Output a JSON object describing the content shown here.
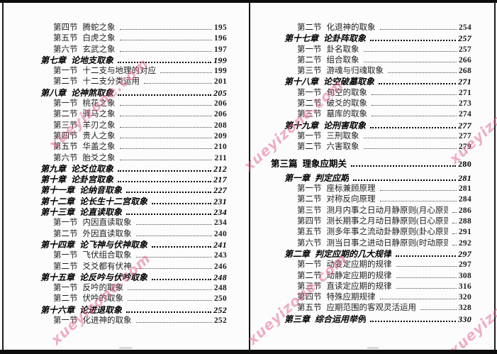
{
  "watermark": {
    "text": "xueyizone.com",
    "color": "#e4608f"
  },
  "pages": {
    "left": {
      "rows": [
        {
          "level": "jie",
          "label": "第四节",
          "title": "腾蛇之象",
          "page": "195"
        },
        {
          "level": "jie",
          "label": "第五节",
          "title": "白虎之象",
          "page": "196"
        },
        {
          "level": "jie",
          "label": "第六节",
          "title": "玄武之象",
          "page": "197"
        },
        {
          "level": "zhang",
          "label": "第七章",
          "title": "论地支取象",
          "page": "199"
        },
        {
          "level": "jie",
          "label": "第一节",
          "title": "十二支与地理的对应",
          "page": "199"
        },
        {
          "level": "jie",
          "label": "第二节",
          "title": "十二支分类运用",
          "page": "201"
        },
        {
          "level": "zhang",
          "label": "第八章",
          "title": "论神煞取象",
          "page": "205"
        },
        {
          "level": "jie",
          "label": "第一节",
          "title": "桃花之象",
          "page": "206"
        },
        {
          "level": "jie",
          "label": "第二节",
          "title": "驿马之象",
          "page": "206"
        },
        {
          "level": "jie",
          "label": "第三节",
          "title": "羊刃之象",
          "page": "208"
        },
        {
          "level": "jie",
          "label": "第四节",
          "title": "贵人之象",
          "page": "209"
        },
        {
          "level": "jie",
          "label": "第五节",
          "title": "华盖之象",
          "page": "210"
        },
        {
          "level": "jie",
          "label": "第六节",
          "title": "胎爻之象",
          "page": "211"
        },
        {
          "level": "zhang",
          "label": "第九章",
          "title": "论爻位取象",
          "page": "212"
        },
        {
          "level": "zhang",
          "label": "第十章",
          "title": "论卦宫取象",
          "page": "217"
        },
        {
          "level": "zhang",
          "label": "第十一章",
          "title": "论纳音取象",
          "page": "227"
        },
        {
          "level": "zhang",
          "label": "第十二章",
          "title": "论长生十二宫取象",
          "page": "231"
        },
        {
          "level": "zhang",
          "label": "第十三章",
          "title": "论直读取象",
          "page": "234"
        },
        {
          "level": "jie",
          "label": "第一节",
          "title": "内因直读取象",
          "page": "234"
        },
        {
          "level": "jie",
          "label": "第二节",
          "title": "外因直读取象",
          "page": "240"
        },
        {
          "level": "zhang",
          "label": "第十四章",
          "title": "论飞神与伏神取象",
          "page": "241"
        },
        {
          "level": "jie",
          "label": "第一节",
          "title": "飞伏组合取象",
          "page": "243"
        },
        {
          "level": "jie",
          "label": "第二节",
          "title": "爻爻都有伏神",
          "page": "246"
        },
        {
          "level": "zhang",
          "label": "第十五章",
          "title": "论反吟与伏吟取象",
          "page": "248"
        },
        {
          "level": "jie",
          "label": "第一节",
          "title": "反吟的取象",
          "page": "248"
        },
        {
          "level": "jie",
          "label": "第二节",
          "title": "伏吟的取象",
          "page": "250"
        },
        {
          "level": "zhang",
          "label": "第十六章",
          "title": "论进退取象",
          "page": "252"
        },
        {
          "level": "jie",
          "label": "第一节",
          "title": "化进神的取象",
          "page": "252"
        }
      ]
    },
    "right": {
      "rows": [
        {
          "level": "jie",
          "label": "第二节",
          "title": "化退神的取象",
          "page": "254"
        },
        {
          "level": "zhang",
          "label": "第十七章",
          "title": "论卦阵取象",
          "page": "257"
        },
        {
          "level": "jie",
          "label": "第一节",
          "title": "卦名取象",
          "page": "257"
        },
        {
          "level": "jie",
          "label": "第二节",
          "title": "组合取象",
          "page": "266"
        },
        {
          "level": "jie",
          "label": "第三节",
          "title": "游魂与归魂取象",
          "page": "268"
        },
        {
          "level": "zhang",
          "label": "第十八章",
          "title": "论空破墓取象",
          "page": "271"
        },
        {
          "level": "jie",
          "label": "第一节",
          "title": "旬空的取象",
          "page": "271"
        },
        {
          "level": "jie",
          "label": "第二节",
          "title": "破爻的取象",
          "page": "273"
        },
        {
          "level": "jie",
          "label": "第三节",
          "title": "墓库的取象",
          "page": "274"
        },
        {
          "level": "zhang",
          "label": "第十九章",
          "title": "论刑害取象",
          "page": "277"
        },
        {
          "level": "jie",
          "label": "第一节",
          "title": "三刑取象",
          "page": "277"
        },
        {
          "level": "jie",
          "label": "第二节",
          "title": "六害取象",
          "page": "279"
        },
        {
          "level": "pian",
          "label": "第三篇",
          "title": "理象应期关",
          "page": "280"
        },
        {
          "level": "zhang",
          "label": "第一章",
          "title": "判定应期",
          "page": "281"
        },
        {
          "level": "jie",
          "label": "第一节",
          "title": "座标兼顾原理",
          "page": "281"
        },
        {
          "level": "jie",
          "label": "第二节",
          "title": "对称反向原理",
          "page": "284"
        },
        {
          "level": "jie",
          "label": "第三节",
          "title": "测月内事之日动月静原则(月心原则)",
          "page": "286"
        },
        {
          "level": "jie",
          "label": "第四节",
          "title": "测长期事之月动日静原则(日心原则)",
          "page": "288"
        },
        {
          "level": "jie",
          "label": "第五节",
          "title": "测多年事之流动卦静原则(卦心原则)",
          "page": "291"
        },
        {
          "level": "jie",
          "label": "第六节",
          "title": "测当日事之进动日静原则(时动原则)",
          "page": "292"
        },
        {
          "level": "zhang",
          "label": "第二章",
          "title": "判定应期的几大规律",
          "page": "297"
        },
        {
          "level": "jie",
          "label": "第一节",
          "title": "动变定应期的规律",
          "page": "297"
        },
        {
          "level": "jie",
          "label": "第二节",
          "title": "动静定应期的规律",
          "page": "308"
        },
        {
          "level": "jie",
          "label": "第三节",
          "title": "直读定应期的规律",
          "page": "316"
        },
        {
          "level": "jie",
          "label": "第四节",
          "title": "特殊应期规律",
          "page": "320"
        },
        {
          "level": "jie",
          "label": "第五节",
          "title": "应期范围的客观灵活运用",
          "page": "328"
        },
        {
          "level": "zhang",
          "label": "第三章",
          "title": "综合运用举例",
          "page": "330"
        }
      ]
    }
  }
}
